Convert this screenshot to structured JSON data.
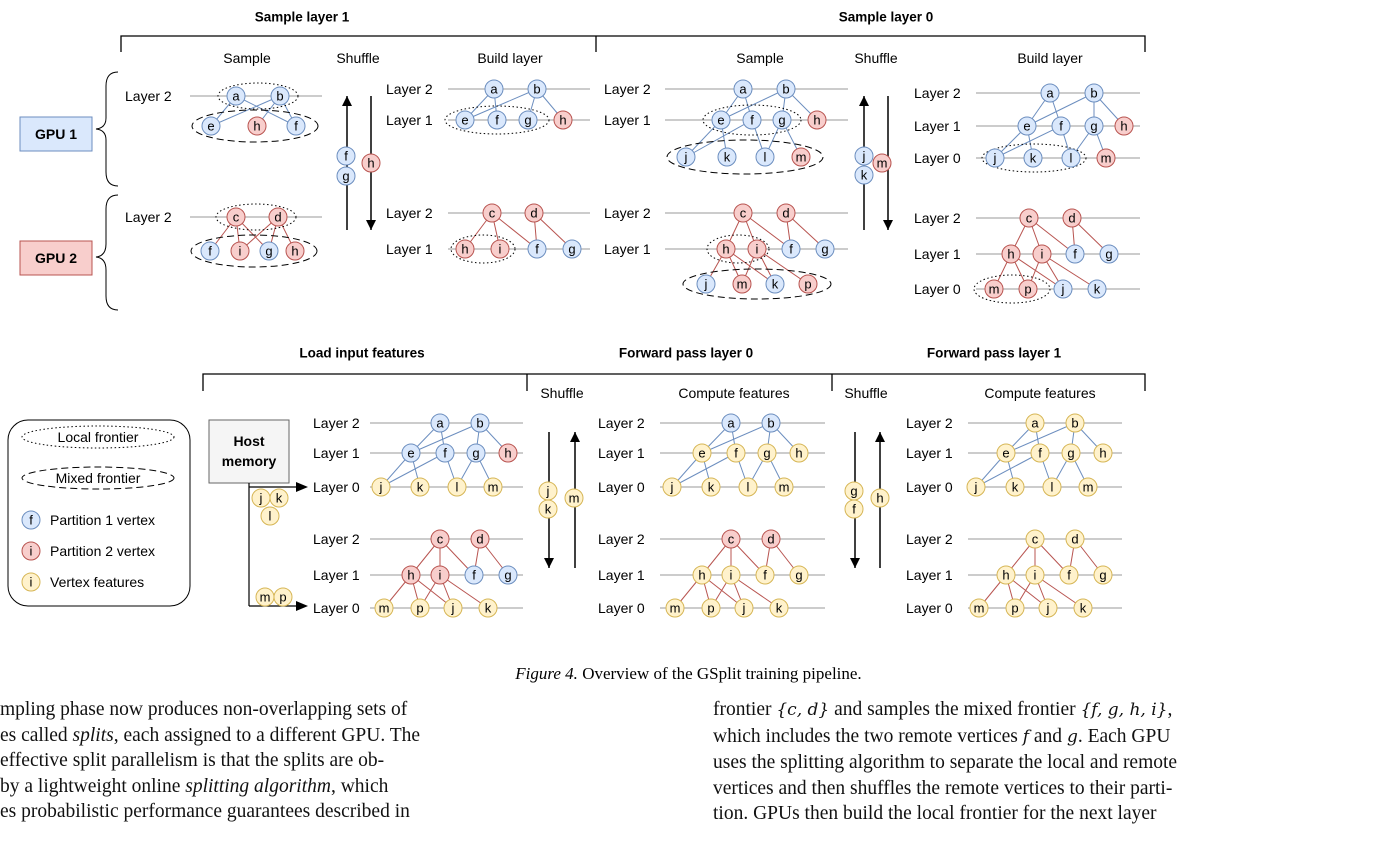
{
  "colors": {
    "blue": "#dae8fc",
    "blue_stroke": "#6c8ebf",
    "red": "#f8cecc",
    "red_stroke": "#b85450",
    "yellow": "#fff2cc",
    "yellow_stroke": "#d6b656",
    "edge_blue": "#6c8ebf",
    "edge_red": "#b85450"
  },
  "top": {
    "header1": "Sample layer 1",
    "header2": "Sample layer 0",
    "col_sample": "Sample",
    "col_shuffle": "Shuffle",
    "col_build": "Build layer",
    "gpu1": "GPU 1",
    "gpu2": "GPU 2"
  },
  "bottom": {
    "h_load": "Load input features",
    "h_fwd0": "Forward pass layer 0",
    "h_fwd1": "Forward pass layer 1",
    "shuffle": "Shuffle",
    "compute": "Compute features",
    "host_line1": "Host",
    "host_line2": "memory"
  },
  "legend": {
    "local": "Local frontier",
    "mixed": "Mixed frontier",
    "p1_letter": "f",
    "p1": "Partition 1 vertex",
    "p2_letter": "i",
    "p2": "Partition 2 vertex",
    "vf_letter": "i",
    "vf": "Vertex features"
  },
  "labels": {
    "layer2": "Layer 2",
    "layer1": "Layer 1",
    "layer0": "Layer 0"
  },
  "caption": {
    "fig": "Figure 4.",
    "text": " Overview of the GSplit training pipeline."
  },
  "text": {
    "left": [
      "mpling phase now produces non-overlapping sets of",
      "es called ",
      "splits",
      ", each assigned to a different GPU. The",
      " effective split parallelism is that the splits are ob-",
      " by a lightweight online ",
      "splitting algorithm",
      ", which",
      "es probabilistic performance guarantees described in"
    ],
    "right": [
      "frontier ",
      "{c, d}",
      " and samples the mixed frontier ",
      "{f, g, h, i}",
      ",",
      "which includes the two remote vertices ",
      "f",
      " and ",
      "g",
      ". Each GPU",
      "uses the splitting algorithm to separate the local and remote",
      "vertices and then shuffles the remote vertices to their parti-",
      "tion. GPUs then build the local frontier for the next layer"
    ]
  }
}
